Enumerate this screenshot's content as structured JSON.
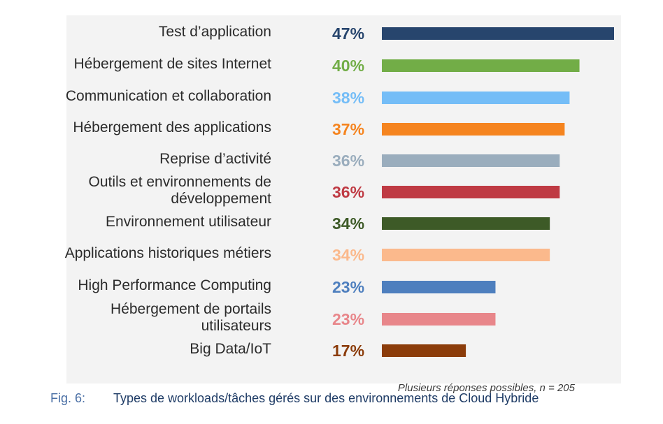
{
  "chart_data": {
    "type": "bar",
    "orientation": "horizontal",
    "categories": [
      "Test d’application",
      "Hébergement de sites Internet",
      "Communication et collaboration",
      "Hébergement des applications",
      "Reprise d’activité",
      "Outils et environnements de\ndéveloppement",
      "Environnement utilisateur",
      "Applications historiques métiers",
      "High Performance Computing",
      "Hébergement de portails\nutilisateurs",
      "Big Data/IoT"
    ],
    "values": [
      47,
      40,
      38,
      37,
      36,
      36,
      34,
      34,
      23,
      23,
      17
    ],
    "value_labels": [
      "47%",
      "40%",
      "38%",
      "37%",
      "36%",
      "36%",
      "34%",
      "34%",
      "23%",
      "23%",
      "17%"
    ],
    "colors": [
      "#27456d",
      "#72ad47",
      "#74bdf7",
      "#f5841f",
      "#9aadbd",
      "#bf3a43",
      "#3d5a27",
      "#fbb98c",
      "#4e7fbe",
      "#e8868a",
      "#8b3c0a"
    ],
    "xlim": [
      0,
      47
    ],
    "grid": false,
    "note": "Plusieurs réponses possibles, n = 205"
  },
  "caption": {
    "number": "Fig. 6:",
    "title": "Types de workloads/tâches gérés sur des environnements de Cloud Hybride"
  }
}
